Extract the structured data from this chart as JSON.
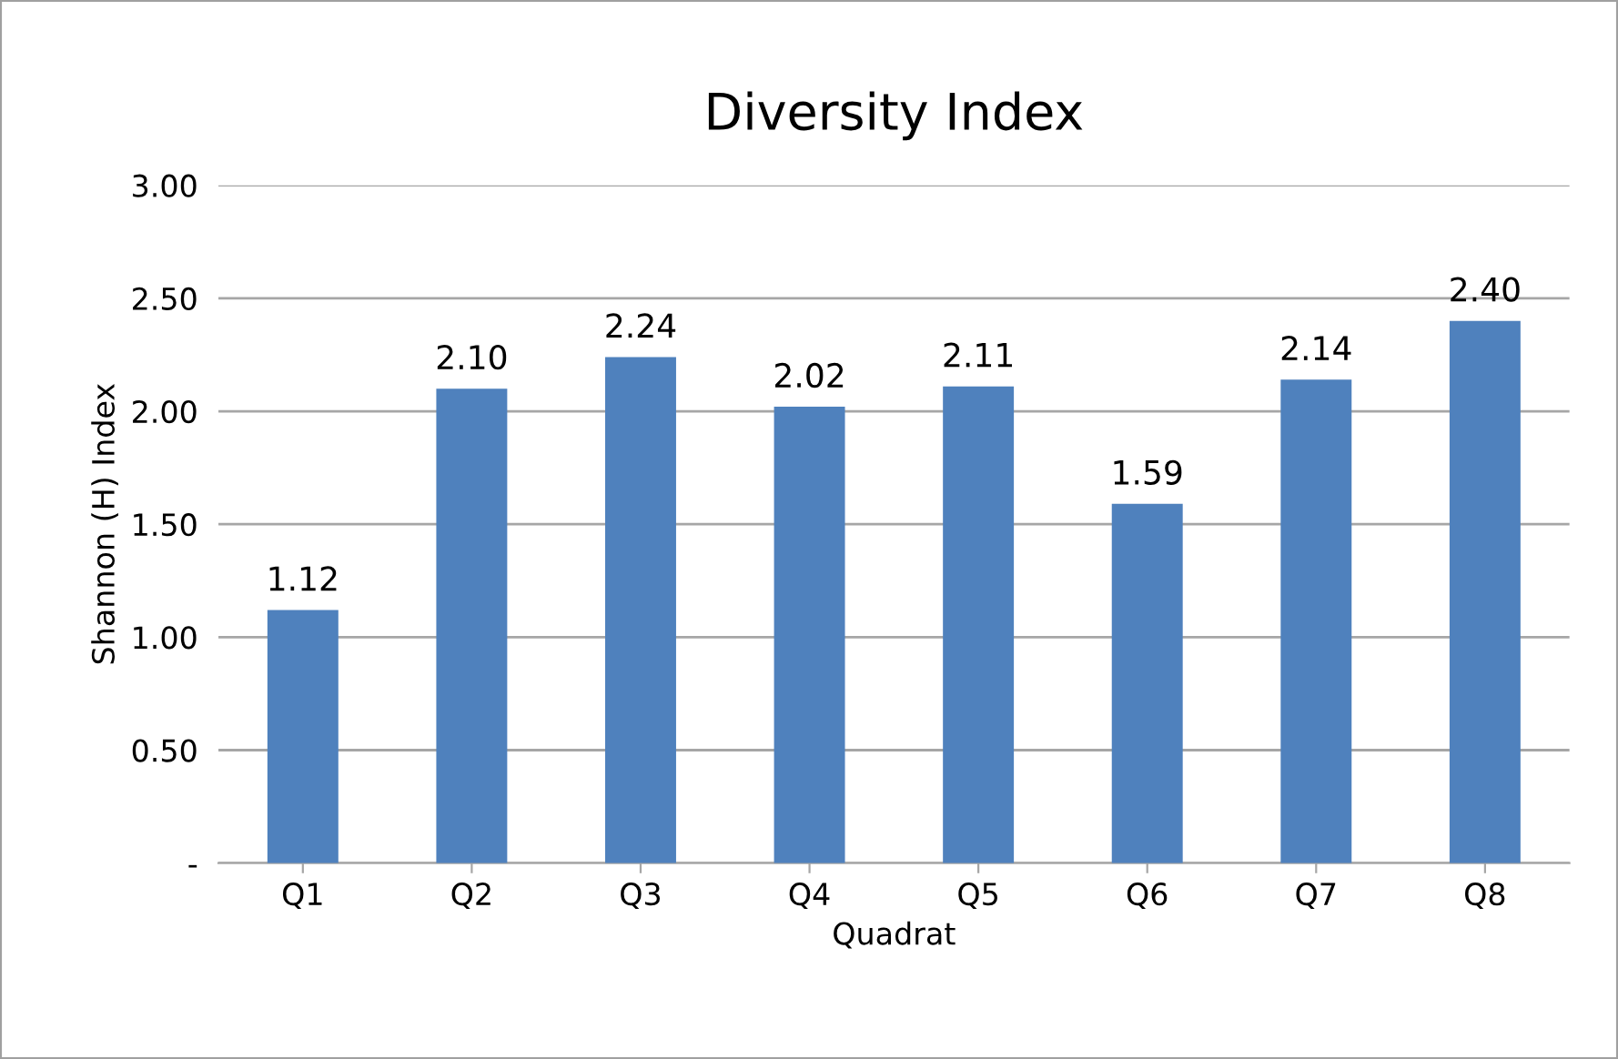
{
  "chart_data": {
    "type": "bar",
    "title": "Diversity Index",
    "xlabel": "Quadrat",
    "ylabel": "Shannon (H) Index",
    "categories": [
      "Q1",
      "Q2",
      "Q3",
      "Q4",
      "Q5",
      "Q6",
      "Q7",
      "Q8"
    ],
    "values": [
      1.12,
      2.1,
      2.24,
      2.02,
      2.11,
      1.59,
      2.14,
      2.4
    ],
    "value_labels": [
      "1.12",
      "2.10",
      "2.24",
      "2.02",
      "2.11",
      "1.59",
      "2.14",
      "2.40"
    ],
    "color": "#4f81bd",
    "ylim": [
      0,
      3
    ],
    "yticks": [
      {
        "value": 0,
        "label": "-"
      },
      {
        "value": 0.5,
        "label": "0.50"
      },
      {
        "value": 1,
        "label": "1.00"
      },
      {
        "value": 1.5,
        "label": "1.50"
      },
      {
        "value": 2,
        "label": "2.00"
      },
      {
        "value": 2.5,
        "label": "2.50"
      },
      {
        "value": 3,
        "label": "3.00"
      }
    ],
    "grid": "y",
    "legend": false
  }
}
